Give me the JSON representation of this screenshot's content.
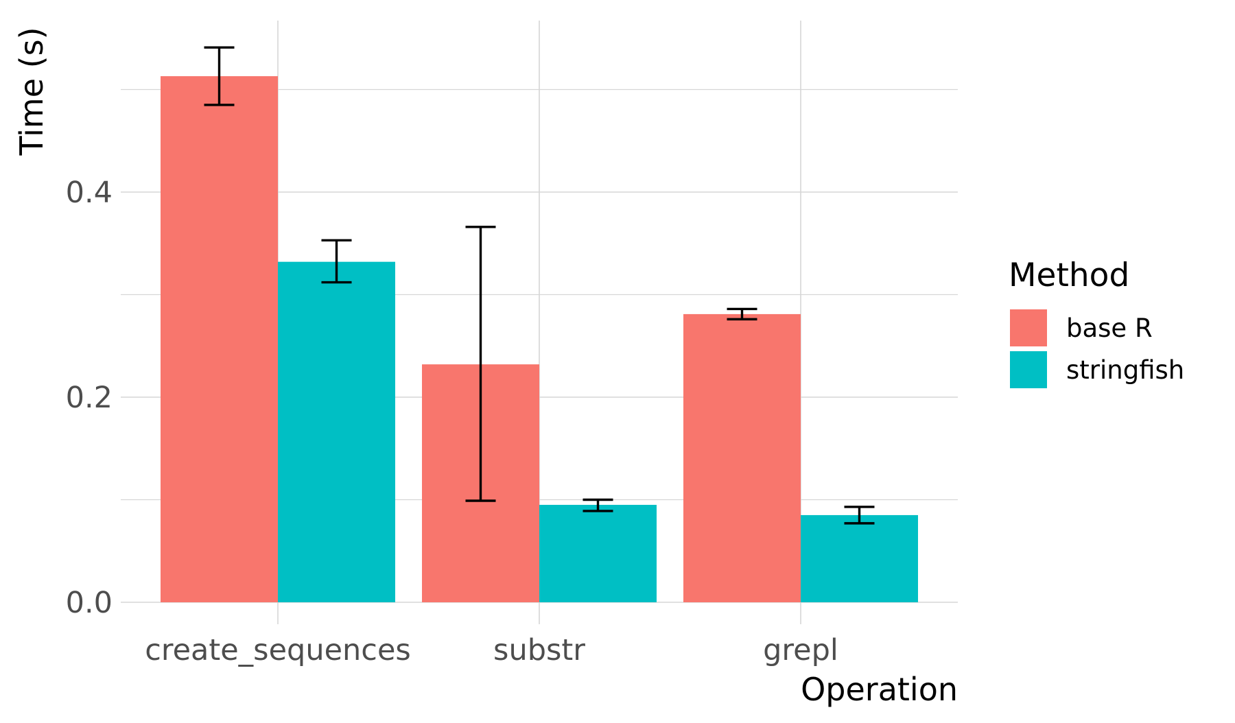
{
  "chart_data": {
    "type": "bar",
    "title": "",
    "xlabel": "Operation",
    "ylabel": "Time (s)",
    "categories": [
      "create_sequences",
      "substr",
      "grepl"
    ],
    "ylim": [
      0,
      0.55
    ],
    "yticks": [
      0.0,
      0.2,
      0.4
    ],
    "ytick_labels": [
      "0.0",
      "0.2",
      "0.4"
    ],
    "grid": true,
    "legend": {
      "title": "Method",
      "position": "right"
    },
    "series": [
      {
        "name": "base R",
        "color": "#F8766D",
        "values": [
          0.513,
          0.232,
          0.281
        ],
        "error_low": [
          0.485,
          0.099,
          0.276
        ],
        "error_high": [
          0.541,
          0.366,
          0.286
        ]
      },
      {
        "name": "stringfish",
        "color": "#00BFC4",
        "values": [
          0.332,
          0.095,
          0.085
        ],
        "error_low": [
          0.312,
          0.089,
          0.077
        ],
        "error_high": [
          0.353,
          0.1,
          0.093
        ]
      }
    ]
  }
}
